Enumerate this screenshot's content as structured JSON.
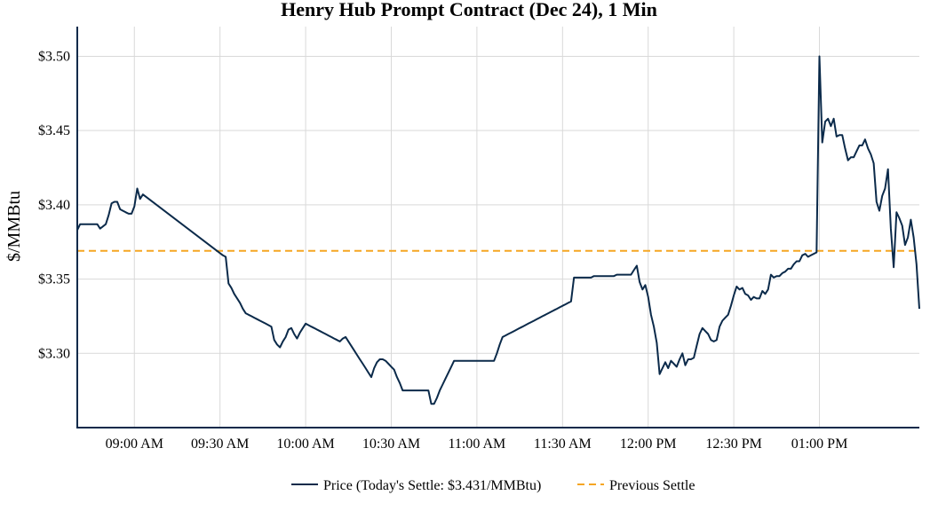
{
  "chart_data": {
    "type": "line",
    "title": "Henry Hub Prompt Contract (Dec 24), 1 Min",
    "ylabel": "$/MMBtu",
    "xlabel": "",
    "ylim": [
      3.25,
      3.52
    ],
    "xlim": [
      "08:40",
      "13:35"
    ],
    "x_ticks": [
      "09:00 AM",
      "09:30 AM",
      "10:00 AM",
      "10:30 AM",
      "11:00 AM",
      "11:30 AM",
      "12:00 PM",
      "12:30 PM",
      "01:00 PM"
    ],
    "y_ticks": [
      "$3.30",
      "$3.35",
      "$3.40",
      "$3.45",
      "$3.50"
    ],
    "grid": true,
    "legend_position": "bottom",
    "colors": {
      "price": "#0b2a4a",
      "previous_settle": "#f5a623",
      "grid": "#d9d9d9",
      "axis": "#0b2a4a"
    },
    "series": [
      {
        "name": "Price (Today's Settle: $3.431/MMBtu)",
        "x": [
          "08:40",
          "08:41",
          "08:47",
          "08:48",
          "08:50",
          "08:51",
          "08:52",
          "08:53",
          "08:54",
          "08:55",
          "08:56",
          "08:57",
          "08:58",
          "08:59",
          "09:00",
          "09:01",
          "09:02",
          "09:03",
          "09:31",
          "09:32",
          "09:33",
          "09:34",
          "09:35",
          "09:36",
          "09:37",
          "09:38",
          "09:39",
          "09:40",
          "09:41",
          "09:42",
          "09:43",
          "09:44",
          "09:45",
          "09:46",
          "09:47",
          "09:48",
          "09:49",
          "09:50",
          "09:51",
          "09:52",
          "09:53",
          "09:54",
          "09:55",
          "09:56",
          "09:57",
          "09:58",
          "09:59",
          "10:00",
          "10:01",
          "10:02",
          "10:03",
          "10:04",
          "10:05",
          "10:06",
          "10:07",
          "10:08",
          "10:09",
          "10:10",
          "10:11",
          "10:12",
          "10:13",
          "10:14",
          "10:15",
          "10:16",
          "10:17",
          "10:18",
          "10:19",
          "10:20",
          "10:21",
          "10:22",
          "10:23",
          "10:24",
          "10:25",
          "10:26",
          "10:27",
          "10:28",
          "10:29",
          "10:30",
          "10:31",
          "10:32",
          "10:33",
          "10:34",
          "10:35",
          "10:36",
          "10:37",
          "10:38",
          "10:39",
          "10:40",
          "10:41",
          "10:42",
          "10:43",
          "10:44",
          "10:45",
          "10:46",
          "10:47",
          "10:48",
          "10:49",
          "10:50",
          "10:51",
          "10:52",
          "10:53",
          "10:54",
          "10:55",
          "10:56",
          "10:57",
          "10:58",
          "10:59",
          "11:00",
          "11:01",
          "11:02",
          "11:03",
          "11:04",
          "11:05",
          "11:06",
          "11:07",
          "11:08",
          "11:09",
          "11:10",
          "11:11",
          "11:12",
          "11:13",
          "11:14",
          "11:15",
          "11:16",
          "11:17",
          "11:18",
          "11:19",
          "11:20",
          "11:21",
          "11:22",
          "11:23",
          "11:24",
          "11:25",
          "11:26",
          "11:27",
          "11:28",
          "11:29",
          "11:30",
          "11:31",
          "11:32",
          "11:33",
          "11:34",
          "11:35",
          "11:36",
          "11:37",
          "11:38",
          "11:39",
          "11:40",
          "11:41",
          "11:42",
          "11:43",
          "11:44",
          "11:45",
          "11:46",
          "11:47",
          "11:48",
          "11:49",
          "11:50",
          "11:51",
          "11:52",
          "11:53",
          "11:54",
          "11:55",
          "11:56",
          "11:57",
          "11:58",
          "11:59",
          "12:00",
          "12:01",
          "12:02",
          "12:03",
          "12:04",
          "12:05",
          "12:06",
          "12:07",
          "12:08",
          "12:09",
          "12:10",
          "12:11",
          "12:12",
          "12:13",
          "12:14",
          "12:15",
          "12:16",
          "12:17",
          "12:18",
          "12:19",
          "12:20",
          "12:21",
          "12:22",
          "12:23",
          "12:24",
          "12:25",
          "12:26",
          "12:27",
          "12:28",
          "12:29",
          "12:30",
          "12:31",
          "12:32",
          "12:33",
          "12:34",
          "12:35",
          "12:36",
          "12:37",
          "12:38",
          "12:39",
          "12:40",
          "12:41",
          "12:42",
          "12:43",
          "12:44",
          "12:45",
          "12:46",
          "12:47",
          "12:48",
          "12:49",
          "12:50",
          "12:51",
          "12:52",
          "12:53",
          "12:54",
          "12:55",
          "12:56",
          "12:57",
          "12:58",
          "12:59",
          "13:00",
          "13:01",
          "13:02",
          "13:03",
          "13:04",
          "13:05",
          "13:06",
          "13:07",
          "13:08",
          "13:09",
          "13:10",
          "13:11",
          "13:12",
          "13:13",
          "13:14",
          "13:15",
          "13:16",
          "13:17",
          "13:18",
          "13:19",
          "13:20",
          "13:21",
          "13:22",
          "13:23",
          "13:24",
          "13:25",
          "13:26",
          "13:27",
          "13:28",
          "13:29",
          "13:30",
          "13:31",
          "13:32",
          "13:33",
          "13:34",
          "13:35"
        ],
        "y": [
          3.383,
          3.387,
          3.387,
          3.384,
          3.387,
          3.393,
          3.401,
          3.402,
          3.402,
          3.397,
          3.396,
          3.395,
          3.394,
          3.394,
          3.399,
          3.411,
          3.404,
          3.407,
          3.366,
          3.365,
          3.347,
          3.344,
          3.34,
          3.337,
          3.334,
          3.33,
          3.327,
          3.326,
          3.325,
          3.324,
          3.323,
          3.322,
          3.321,
          3.32,
          3.319,
          3.318,
          3.309,
          3.306,
          3.304,
          3.308,
          3.311,
          3.316,
          3.317,
          3.313,
          3.31,
          3.314,
          3.317,
          3.32,
          3.319,
          3.318,
          3.317,
          3.316,
          3.315,
          3.314,
          3.313,
          3.312,
          3.311,
          3.31,
          3.309,
          3.308,
          3.31,
          3.311,
          3.308,
          3.305,
          3.302,
          3.299,
          3.296,
          3.293,
          3.29,
          3.287,
          3.284,
          3.29,
          3.294,
          3.296,
          3.296,
          3.295,
          3.293,
          3.291,
          3.289,
          3.284,
          3.28,
          3.275,
          3.275,
          3.275,
          3.275,
          3.275,
          3.275,
          3.275,
          3.275,
          3.275,
          3.275,
          3.266,
          3.266,
          3.27,
          3.275,
          3.279,
          3.283,
          3.287,
          3.291,
          3.295,
          3.295,
          3.295,
          3.295,
          3.295,
          3.295,
          3.295,
          3.295,
          3.295,
          3.295,
          3.295,
          3.295,
          3.295,
          3.295,
          3.295,
          3.3,
          3.306,
          3.311,
          3.312,
          3.313,
          3.314,
          3.315,
          3.316,
          3.317,
          3.318,
          3.319,
          3.32,
          3.321,
          3.322,
          3.323,
          3.324,
          3.325,
          3.326,
          3.327,
          3.328,
          3.329,
          3.33,
          3.331,
          3.332,
          3.333,
          3.334,
          3.335,
          3.351,
          3.351,
          3.351,
          3.351,
          3.351,
          3.351,
          3.351,
          3.352,
          3.352,
          3.352,
          3.352,
          3.352,
          3.352,
          3.352,
          3.352,
          3.353,
          3.353,
          3.353,
          3.353,
          3.353,
          3.353,
          3.356,
          3.359,
          3.348,
          3.343,
          3.346,
          3.338,
          3.326,
          3.318,
          3.307,
          3.286,
          3.29,
          3.294,
          3.29,
          3.295,
          3.293,
          3.291,
          3.296,
          3.3,
          3.292,
          3.296,
          3.296,
          3.297,
          3.305,
          3.313,
          3.317,
          3.315,
          3.313,
          3.309,
          3.308,
          3.309,
          3.318,
          3.322,
          3.324,
          3.326,
          3.332,
          3.339,
          3.345,
          3.343,
          3.344,
          3.34,
          3.339,
          3.336,
          3.338,
          3.337,
          3.337,
          3.342,
          3.34,
          3.343,
          3.353,
          3.351,
          3.352,
          3.352,
          3.354,
          3.355,
          3.357,
          3.357,
          3.36,
          3.362,
          3.362,
          3.366,
          3.367,
          3.365,
          3.366,
          3.367,
          3.368,
          3.5,
          3.442,
          3.456,
          3.458,
          3.453,
          3.458,
          3.446,
          3.447,
          3.447,
          3.438,
          3.43,
          3.432,
          3.432,
          3.436,
          3.44,
          3.44,
          3.444,
          3.438,
          3.434,
          3.428,
          3.402,
          3.396,
          3.406,
          3.411,
          3.424,
          3.384,
          3.358,
          3.395,
          3.391,
          3.386,
          3.373,
          3.378,
          3.39,
          3.378,
          3.36,
          3.33
        ]
      },
      {
        "name": "Previous Settle",
        "value": 3.369
      }
    ]
  }
}
